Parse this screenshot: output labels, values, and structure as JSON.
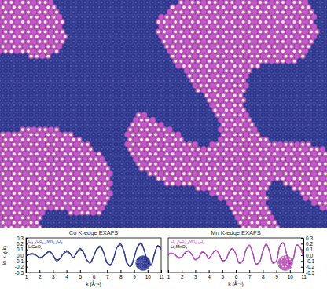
{
  "chart_data": [
    {
      "type": "line",
      "title": "Co K-edge EXAFS",
      "xlabel": "k (Å⁻¹)",
      "ylabel": "k² × χ(k)",
      "xlim": [
        1,
        11
      ],
      "xticks": [
        1,
        2,
        3,
        4,
        5,
        6,
        7,
        8,
        9,
        10,
        11
      ],
      "ylim": [
        -0.3,
        0.3
      ],
      "yticks": [
        -0.3,
        -0.2,
        -0.1,
        {
          "value": 0,
          "label": "0.0"
        },
        0.1,
        0.2,
        0.3
      ],
      "legend": "upper left",
      "x": [
        1,
        1.25,
        1.5,
        1.75,
        2,
        2.25,
        2.5,
        2.75,
        3,
        3.25,
        3.5,
        3.75,
        4,
        4.25,
        4.5,
        4.75,
        5,
        5.25,
        5.5,
        5.75,
        6,
        6.25,
        6.5,
        6.75,
        7,
        7.25,
        7.5,
        7.75,
        8,
        8.25,
        8.5,
        8.75,
        9,
        9.25,
        9.5,
        9.75,
        10,
        10.25,
        10.5,
        10.75,
        11
      ],
      "series": [
        {
          "name": "Li1.2Co0.4Mn0.4O2",
          "color": "#2b3aa8",
          "values": [
            0.0,
            0.01,
            0.02,
            0.0,
            -0.04,
            -0.02,
            0.03,
            0.06,
            0.0,
            -0.08,
            -0.06,
            0.02,
            0.06,
            0.03,
            -0.04,
            0.04,
            0.1,
            0.05,
            -0.08,
            -0.12,
            -0.02,
            0.1,
            0.14,
            0.04,
            -0.12,
            -0.16,
            -0.04,
            0.14,
            0.18,
            0.06,
            -0.14,
            -0.18,
            -0.04,
            0.14,
            0.2,
            0.08,
            -0.1,
            -0.16,
            0.02,
            0.16,
            0.1
          ]
        },
        {
          "name": "LiCoO2",
          "color": "#000000",
          "values": [
            0.0,
            0.02,
            0.03,
            0.0,
            -0.05,
            -0.03,
            0.04,
            0.07,
            0.01,
            -0.1,
            -0.07,
            0.03,
            0.08,
            0.04,
            -0.05,
            0.05,
            0.12,
            0.06,
            -0.09,
            -0.14,
            -0.03,
            0.12,
            0.16,
            0.05,
            -0.14,
            -0.18,
            -0.05,
            0.15,
            0.2,
            0.07,
            -0.16,
            -0.2,
            -0.05,
            0.15,
            0.22,
            0.09,
            -0.12,
            -0.18,
            0.01,
            0.17,
            0.12
          ]
        }
      ]
    },
    {
      "type": "line",
      "title": "Mn K-edge EXAFS",
      "xlabel": "k (Å⁻¹)",
      "xlim": [
        1,
        11
      ],
      "xticks": [
        1,
        2,
        3,
        4,
        5,
        6,
        7,
        8,
        9,
        10,
        11
      ],
      "ylim": [
        -0.3,
        0.3
      ],
      "yticks": [
        -0.3,
        -0.2,
        -0.1,
        {
          "value": 0,
          "label": "0.0"
        },
        0.1,
        0.2,
        0.3
      ],
      "legend": "upper left",
      "x": [
        1,
        1.25,
        1.5,
        1.75,
        2,
        2.25,
        2.5,
        2.75,
        3,
        3.25,
        3.5,
        3.75,
        4,
        4.25,
        4.5,
        4.75,
        5,
        5.25,
        5.5,
        5.75,
        6,
        6.25,
        6.5,
        6.75,
        7,
        7.25,
        7.5,
        7.75,
        8,
        8.25,
        8.5,
        8.75,
        9,
        9.25,
        9.5,
        9.75,
        10,
        10.25,
        10.5,
        10.75,
        11
      ],
      "series": [
        {
          "name": "Li1.2Co0.4Mn0.4O2",
          "color": "#c248c8",
          "values": [
            0.02,
            0.04,
            0.01,
            -0.05,
            -0.03,
            0.05,
            0.08,
            0.01,
            -0.08,
            -0.04,
            0.06,
            0.03,
            -0.06,
            0.02,
            0.09,
            0.03,
            -0.1,
            -0.08,
            0.06,
            0.12,
            0.02,
            -0.14,
            -0.1,
            0.1,
            0.18,
            0.04,
            -0.16,
            -0.12,
            0.08,
            0.2,
            0.06,
            -0.14,
            -0.1,
            0.16,
            0.22,
            0.02,
            -0.16,
            -0.06,
            0.18,
            0.14,
            -0.06
          ]
        },
        {
          "name": "Li2MnO3",
          "color": "#000000",
          "values": [
            0.01,
            0.03,
            0.01,
            -0.04,
            -0.03,
            0.04,
            0.07,
            0.01,
            -0.07,
            -0.04,
            0.05,
            0.03,
            -0.05,
            0.02,
            0.08,
            0.03,
            -0.09,
            -0.08,
            0.05,
            0.11,
            0.02,
            -0.13,
            -0.1,
            0.09,
            0.17,
            0.04,
            -0.15,
            -0.12,
            0.07,
            0.19,
            0.06,
            -0.13,
            -0.1,
            0.15,
            0.21,
            0.03,
            -0.15,
            -0.06,
            0.17,
            0.14,
            -0.05
          ]
        }
      ]
    }
  ]
}
